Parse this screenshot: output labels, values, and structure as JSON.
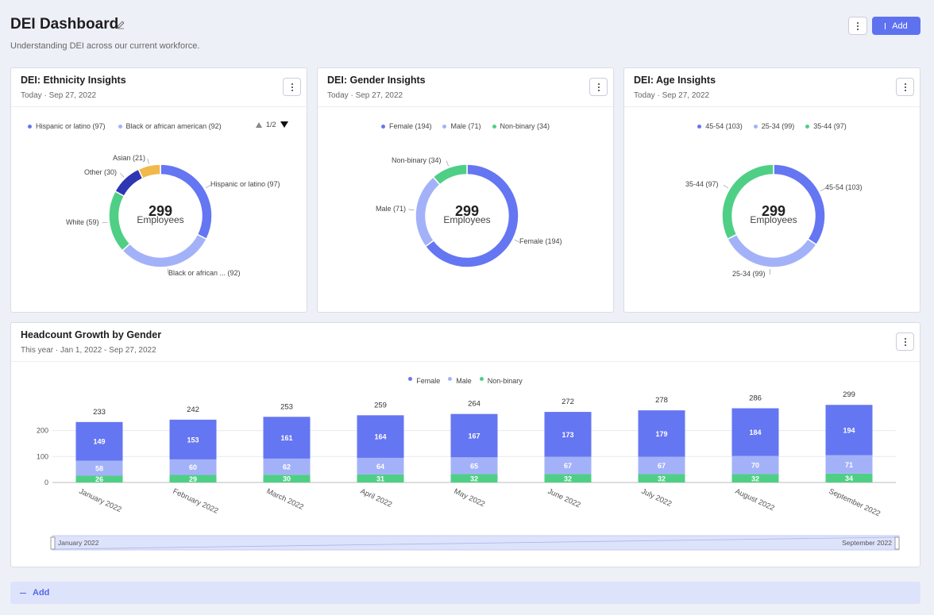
{
  "header": {
    "title": "DEI Dashboard",
    "subtitle": "Understanding DEI across our current workforce.",
    "add_label": "Add",
    "edit_icon": "pencil-icon",
    "more_icon": "more-vertical-icon"
  },
  "colors": {
    "accent": "#5e72f0",
    "blue": "#6576f2",
    "light_blue": "#a3b2f8",
    "green": "#4fcf85",
    "navy": "#2e36b3",
    "gold": "#f0b94a"
  },
  "ethnicity_card": {
    "title": "DEI: Ethnicity Insights",
    "subtitle": "Today · Sep 27, 2022",
    "legend": [
      {
        "label": "Hispanic or latino (97)",
        "color": "#6576f2"
      },
      {
        "label": "Black or african american (92)",
        "color": "#a3b2f8"
      }
    ],
    "pager": "1/2",
    "center_value": "299",
    "center_label": "Employees",
    "slice_labels": {
      "hispanic": "Hispanic or latino (97)",
      "black": "Black or african ... (92)",
      "white": "White (59)",
      "other": "Other (30)",
      "asian": "Asian (21)"
    }
  },
  "gender_card": {
    "title": "DEI: Gender Insights",
    "subtitle": "Today · Sep 27, 2022",
    "legend": [
      {
        "label": "Female (194)",
        "color": "#6576f2"
      },
      {
        "label": "Male (71)",
        "color": "#a3b2f8"
      },
      {
        "label": "Non-binary (34)",
        "color": "#4fcf85"
      }
    ],
    "center_value": "299",
    "center_label": "Employees",
    "slice_labels": {
      "female": "Female (194)",
      "male": "Male (71)",
      "nonbinary": "Non-binary (34)"
    }
  },
  "age_card": {
    "title": "DEI: Age Insights",
    "subtitle": "Today · Sep 27, 2022",
    "legend": [
      {
        "label": "45-54 (103)",
        "color": "#6576f2"
      },
      {
        "label": "25-34 (99)",
        "color": "#a3b2f8"
      },
      {
        "label": "35-44 (97)",
        "color": "#4fcf85"
      }
    ],
    "center_value": "299",
    "center_label": "Employees",
    "slice_labels": {
      "a4554": "45-54 (103)",
      "a2534": "25-34 (99)",
      "a3544": "35-44 (97)"
    }
  },
  "headcount_card": {
    "title": "Headcount Growth by Gender",
    "subtitle": "This year · Jan 1, 2022 - Sep 27, 2022",
    "legend": [
      {
        "label": "Female",
        "color": "#6576f2"
      },
      {
        "label": "Male",
        "color": "#a3b2f8"
      },
      {
        "label": "Non-binary",
        "color": "#4fcf85"
      }
    ],
    "range_start": "January 2022",
    "range_end": "September 2022"
  },
  "footer": {
    "add_label": "Add"
  },
  "chart_data": [
    {
      "type": "pie",
      "title": "DEI: Ethnicity Insights",
      "categories": [
        "Hispanic or latino",
        "Black or african american",
        "White",
        "Other",
        "Asian"
      ],
      "values": [
        97,
        92,
        59,
        30,
        21
      ],
      "colors": [
        "#6576f2",
        "#a3b2f8",
        "#4fcf85",
        "#2e36b3",
        "#f0b94a"
      ],
      "total": 299
    },
    {
      "type": "pie",
      "title": "DEI: Gender Insights",
      "categories": [
        "Female",
        "Male",
        "Non-binary"
      ],
      "values": [
        194,
        71,
        34
      ],
      "colors": [
        "#6576f2",
        "#a3b2f8",
        "#4fcf85"
      ],
      "total": 299
    },
    {
      "type": "pie",
      "title": "DEI: Age Insights",
      "categories": [
        "45-54",
        "25-34",
        "35-44"
      ],
      "values": [
        103,
        99,
        97
      ],
      "colors": [
        "#6576f2",
        "#a3b2f8",
        "#4fcf85"
      ],
      "total": 299
    },
    {
      "type": "bar",
      "stacked": true,
      "title": "Headcount Growth by Gender",
      "categories": [
        "January 2022",
        "February 2022",
        "March 2022",
        "April 2022",
        "May 2022",
        "June 2022",
        "July 2022",
        "August 2022",
        "September 2022"
      ],
      "series": [
        {
          "name": "Non-binary",
          "color": "#4fcf85",
          "values": [
            26,
            29,
            30,
            31,
            32,
            32,
            32,
            32,
            34
          ]
        },
        {
          "name": "Male",
          "color": "#a3b2f8",
          "values": [
            58,
            60,
            62,
            64,
            65,
            67,
            67,
            70,
            71
          ]
        },
        {
          "name": "Female",
          "color": "#6576f2",
          "values": [
            149,
            153,
            161,
            164,
            167,
            173,
            179,
            184,
            194
          ]
        }
      ],
      "totals": [
        233,
        242,
        253,
        259,
        264,
        272,
        278,
        286,
        299
      ],
      "yticks": [
        0,
        100,
        200
      ],
      "ylim": [
        0,
        300
      ],
      "grid": true,
      "legend": "top-center"
    }
  ]
}
